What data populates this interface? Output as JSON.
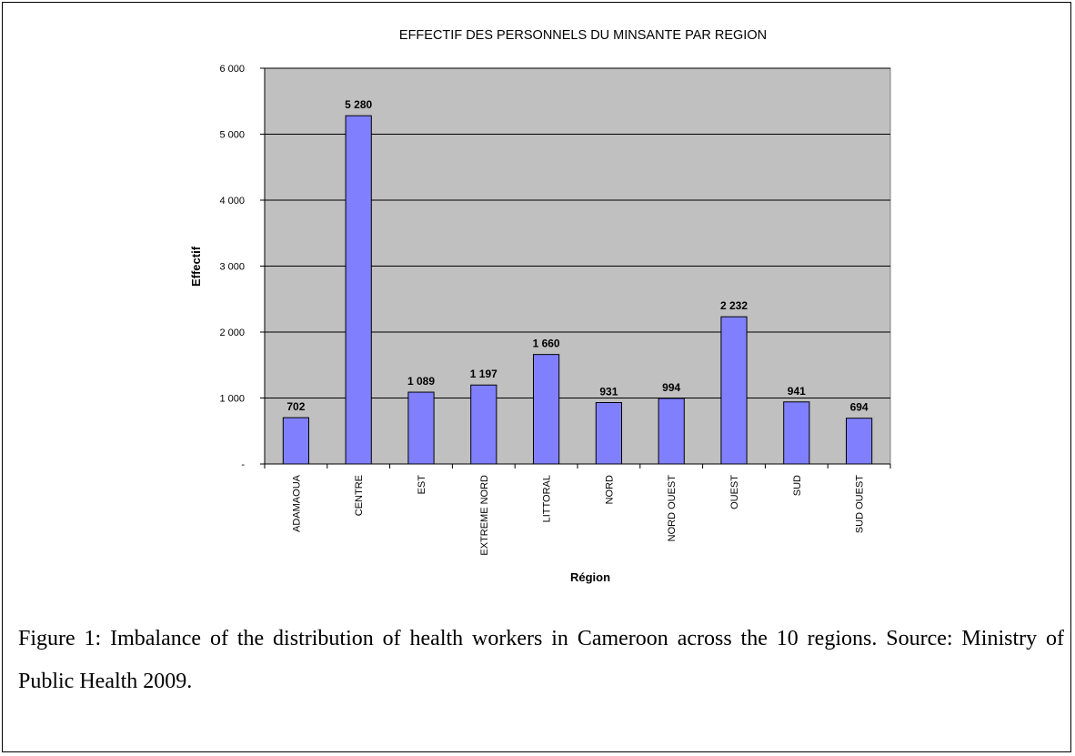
{
  "chart_data": {
    "type": "bar",
    "title": "EFFECTIF DES PERSONNELS DU MINSANTE PAR REGION",
    "xlabel": "Région",
    "ylabel": "Effectif",
    "categories": [
      "ADAMAOUA",
      "CENTRE",
      "EST",
      "EXTREME NORD",
      "LITTORAL",
      "NORD",
      "NORD OUEST",
      "OUEST",
      "SUD",
      "SUD OUEST"
    ],
    "values": [
      702,
      5280,
      1089,
      1197,
      1660,
      931,
      994,
      2232,
      941,
      694
    ],
    "value_labels": [
      "702",
      "5 280",
      "1 089",
      "1 197",
      "1 660",
      "931",
      "994",
      "2 232",
      "941",
      "694"
    ],
    "yticks": [
      0,
      1000,
      2000,
      3000,
      4000,
      5000,
      6000
    ],
    "ytick_labels": [
      "-",
      "1 000",
      "2 000",
      "3 000",
      "4 000",
      "5 000",
      "6 000"
    ],
    "ylim": [
      0,
      6000
    ],
    "grid": true,
    "colors": {
      "bar": "#8080ff",
      "plot_bg": "#c0c0c0",
      "grid": "#000000"
    }
  },
  "caption": "Figure 1: Imbalance of the distribution of health workers in Cameroon across the 10 regions. Source: Ministry of Public Health 2009."
}
